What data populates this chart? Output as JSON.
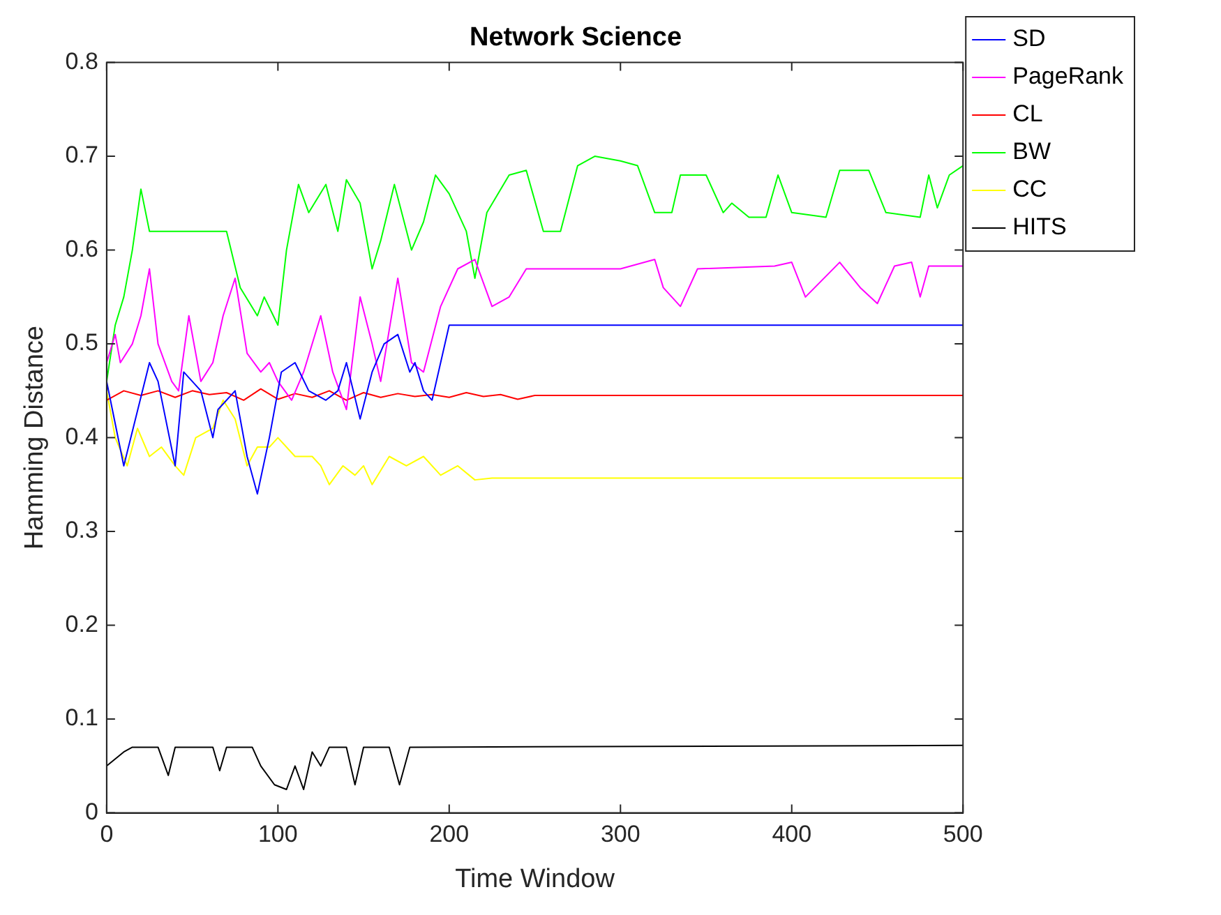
{
  "chart_data": {
    "type": "line",
    "title": "Network Science",
    "xlabel": "Time Window",
    "ylabel": "Hamming Distance",
    "xlim": [
      0,
      500
    ],
    "xticks": [
      0,
      100,
      200,
      300,
      400,
      500
    ],
    "ylim": [
      0,
      0.8
    ],
    "yticks": [
      0,
      0.1,
      0.2,
      0.3,
      0.4,
      0.5,
      0.6,
      0.7,
      0.8
    ],
    "grid": false,
    "legend": "top right",
    "marker": "none",
    "line_style": "solid",
    "series": [
      {
        "name": "SD",
        "color": "#0000ff",
        "x": [
          0,
          10,
          25,
          30,
          40,
          45,
          55,
          62,
          65,
          75,
          82,
          88,
          95,
          102,
          110,
          118,
          128,
          135,
          140,
          148,
          155,
          162,
          170,
          177,
          180,
          185,
          190,
          195,
          200,
          215,
          500
        ],
        "values": [
          0.46,
          0.37,
          0.48,
          0.46,
          0.37,
          0.47,
          0.45,
          0.4,
          0.43,
          0.45,
          0.38,
          0.34,
          0.4,
          0.47,
          0.48,
          0.45,
          0.44,
          0.45,
          0.48,
          0.42,
          0.47,
          0.5,
          0.51,
          0.47,
          0.48,
          0.45,
          0.44,
          0.48,
          0.52,
          0.52,
          0.52
        ]
      },
      {
        "name": "PageRank",
        "color": "#ff00ff",
        "x": [
          0,
          5,
          8,
          15,
          20,
          25,
          30,
          38,
          42,
          48,
          55,
          62,
          68,
          75,
          82,
          90,
          95,
          100,
          108,
          115,
          125,
          132,
          140,
          148,
          155,
          160,
          170,
          178,
          185,
          195,
          205,
          215,
          225,
          235,
          245,
          300,
          320,
          325,
          335,
          345,
          390,
          400,
          408,
          428,
          440,
          450,
          460,
          470,
          475,
          480,
          500
        ],
        "values": [
          0.48,
          0.51,
          0.48,
          0.5,
          0.53,
          0.58,
          0.5,
          0.46,
          0.45,
          0.53,
          0.46,
          0.48,
          0.53,
          0.57,
          0.49,
          0.47,
          0.48,
          0.46,
          0.44,
          0.47,
          0.53,
          0.47,
          0.43,
          0.55,
          0.5,
          0.46,
          0.57,
          0.48,
          0.47,
          0.54,
          0.58,
          0.59,
          0.54,
          0.55,
          0.58,
          0.58,
          0.59,
          0.56,
          0.54,
          0.58,
          0.583,
          0.587,
          0.55,
          0.587,
          0.56,
          0.543,
          0.583,
          0.587,
          0.55,
          0.583,
          0.583
        ]
      },
      {
        "name": "CL",
        "color": "#ff0000",
        "x": [
          0,
          10,
          20,
          30,
          40,
          50,
          60,
          70,
          80,
          90,
          100,
          110,
          120,
          130,
          140,
          150,
          160,
          170,
          180,
          190,
          200,
          210,
          220,
          230,
          240,
          250,
          500
        ],
        "values": [
          0.44,
          0.45,
          0.445,
          0.45,
          0.443,
          0.45,
          0.446,
          0.448,
          0.44,
          0.452,
          0.441,
          0.447,
          0.443,
          0.45,
          0.44,
          0.448,
          0.443,
          0.447,
          0.444,
          0.446,
          0.443,
          0.448,
          0.444,
          0.446,
          0.441,
          0.445,
          0.445
        ]
      },
      {
        "name": "BW",
        "color": "#00ff00",
        "x": [
          0,
          5,
          10,
          15,
          20,
          25,
          45,
          60,
          70,
          78,
          88,
          92,
          100,
          105,
          112,
          118,
          128,
          135,
          140,
          148,
          155,
          160,
          168,
          178,
          185,
          192,
          200,
          210,
          215,
          222,
          235,
          245,
          255,
          265,
          275,
          285,
          300,
          310,
          320,
          330,
          335,
          350,
          360,
          365,
          375,
          385,
          392,
          400,
          420,
          428,
          445,
          455,
          475,
          480,
          485,
          492,
          500
        ],
        "values": [
          0.46,
          0.52,
          0.55,
          0.6,
          0.665,
          0.62,
          0.62,
          0.62,
          0.62,
          0.56,
          0.53,
          0.55,
          0.52,
          0.6,
          0.67,
          0.64,
          0.67,
          0.62,
          0.675,
          0.65,
          0.58,
          0.61,
          0.67,
          0.6,
          0.63,
          0.68,
          0.66,
          0.62,
          0.57,
          0.64,
          0.68,
          0.685,
          0.62,
          0.62,
          0.69,
          0.7,
          0.695,
          0.69,
          0.64,
          0.64,
          0.68,
          0.68,
          0.64,
          0.65,
          0.635,
          0.635,
          0.68,
          0.64,
          0.635,
          0.685,
          0.685,
          0.64,
          0.635,
          0.68,
          0.645,
          0.68,
          0.69
        ]
      },
      {
        "name": "CC",
        "color": "#ffff00",
        "x": [
          0,
          5,
          12,
          18,
          25,
          32,
          40,
          45,
          52,
          62,
          68,
          75,
          82,
          88,
          95,
          100,
          110,
          120,
          125,
          130,
          138,
          145,
          150,
          155,
          165,
          175,
          185,
          195,
          205,
          215,
          225,
          500
        ],
        "values": [
          0.45,
          0.4,
          0.37,
          0.41,
          0.38,
          0.39,
          0.37,
          0.36,
          0.4,
          0.41,
          0.44,
          0.42,
          0.37,
          0.39,
          0.39,
          0.4,
          0.38,
          0.38,
          0.37,
          0.35,
          0.37,
          0.36,
          0.37,
          0.35,
          0.38,
          0.37,
          0.38,
          0.36,
          0.37,
          0.355,
          0.357,
          0.357
        ]
      },
      {
        "name": "HITS",
        "color": "#000000",
        "x": [
          0,
          10,
          15,
          30,
          36,
          40,
          62,
          66,
          70,
          85,
          90,
          98,
          105,
          110,
          115,
          120,
          125,
          130,
          140,
          145,
          150,
          165,
          171,
          177,
          500
        ],
        "values": [
          0.05,
          0.065,
          0.07,
          0.07,
          0.04,
          0.07,
          0.07,
          0.045,
          0.07,
          0.07,
          0.05,
          0.03,
          0.025,
          0.05,
          0.025,
          0.065,
          0.05,
          0.07,
          0.07,
          0.03,
          0.07,
          0.07,
          0.03,
          0.07,
          0.072
        ]
      }
    ]
  }
}
